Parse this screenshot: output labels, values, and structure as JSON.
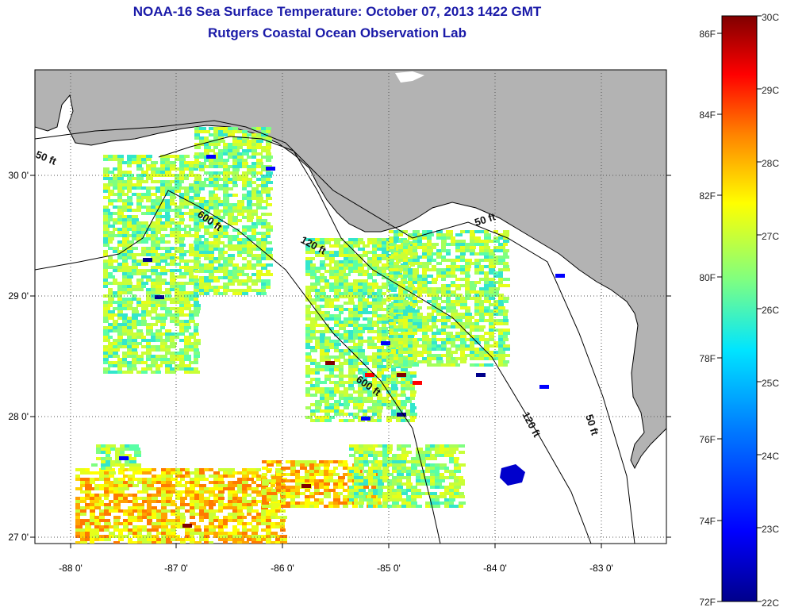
{
  "title": "NOAA-16 Sea Surface Temperature:  October 07, 2013 1422 GMT",
  "subtitle": "Rutgers Coastal Ocean Observation Lab",
  "map": {
    "lon_range": [
      -88.35,
      -82.5
    ],
    "lat_range": [
      26.98,
      30.85
    ],
    "lon_ticks": [
      "-88 0'",
      "-87 0'",
      "-86 0'",
      "-85 0'",
      "-84 0'",
      "-83 0'"
    ],
    "lat_ticks": [
      "30 0'",
      "29 0'",
      "28 0'",
      "27 0'"
    ],
    "land_color": "#b3b3b3",
    "ocean_color": "#ffffff",
    "contour_labels": [
      "50 ft",
      "600 ft",
      "120 ft",
      "50 ft",
      "600 ft",
      "120 ft",
      "50 ft"
    ]
  },
  "colorbar": {
    "celsius_labels": [
      "30C",
      "29C",
      "28C",
      "27C",
      "26C",
      "25C",
      "24C",
      "23C",
      "22C"
    ],
    "fahrenheit_labels": [
      "86F",
      "84F",
      "82F",
      "80F",
      "78F",
      "76F",
      "74F",
      "72F"
    ],
    "celsius_range": [
      22,
      30
    ],
    "colors": [
      "#00008b",
      "#0000ff",
      "#0080ff",
      "#00e5ff",
      "#80ff80",
      "#ffff00",
      "#ff8000",
      "#ff0000",
      "#800000"
    ]
  }
}
